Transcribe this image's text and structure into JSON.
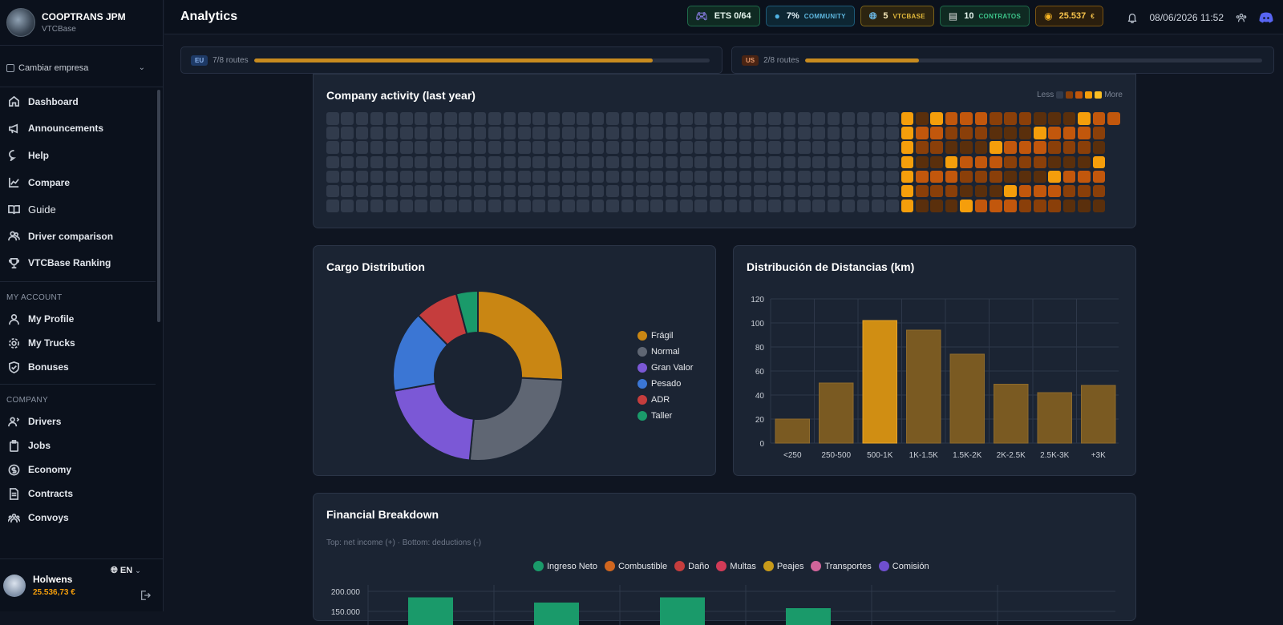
{
  "brand": {
    "name": "COOPTRANS JPM",
    "sub": "VTCBase"
  },
  "switch_company": "Cambiar empresa",
  "nav": {
    "main": [
      {
        "label": "Dashboard",
        "icon": "home-icon"
      },
      {
        "label": "Announcements",
        "icon": "megaphone-icon"
      },
      {
        "label": "Help",
        "icon": "chat-icon"
      },
      {
        "label": "Compare",
        "icon": "chart-line-icon"
      },
      {
        "label": "Guide",
        "icon": "book-icon"
      },
      {
        "label": "Driver comparison",
        "icon": "users-icon"
      },
      {
        "label": "VTCBase Ranking",
        "icon": "trophy-icon"
      }
    ],
    "account_title": "MY ACCOUNT",
    "account": [
      {
        "label": "My Profile",
        "icon": "user-icon"
      },
      {
        "label": "My Trucks",
        "icon": "gear-icon"
      },
      {
        "label": "Bonuses",
        "icon": "shield-icon"
      }
    ],
    "company_title": "COMPANY",
    "company": [
      {
        "label": "Drivers",
        "icon": "users-icon"
      },
      {
        "label": "Jobs",
        "icon": "clipboard-icon"
      },
      {
        "label": "Economy",
        "icon": "dollar-icon"
      },
      {
        "label": "Contracts",
        "icon": "document-icon"
      },
      {
        "label": "Convoys",
        "icon": "group-icon"
      }
    ]
  },
  "user": {
    "name": "Holwens",
    "money": "25.536,73 €",
    "lang": "EN"
  },
  "header": {
    "title": "Analytics",
    "pills": {
      "ets": "ETS 0/64",
      "community_value": "7%",
      "community_label": "COMMUNITY",
      "vtc_value": "5",
      "vtc_label": "VTCBASE",
      "contracts_value": "10",
      "contracts_label": "CONTRATOS",
      "money_value": "25.537",
      "money_unit": "€"
    },
    "datetime": "08/06/2026 11:52"
  },
  "routes": {
    "eu": {
      "tag": "EU",
      "text": "7/8 routes",
      "progress": 0.875
    },
    "us": {
      "tag": "US",
      "text": "2/8 routes",
      "progress": 0.25
    }
  },
  "activity": {
    "title": "Company activity (last year)",
    "less": "Less",
    "more": "More",
    "colors": [
      "#313b4c",
      "#5a2f0c",
      "#8a3f09",
      "#c2570c",
      "#f59e0b"
    ]
  },
  "cargo": {
    "title": "Cargo Distribution",
    "chart_data": {
      "type": "pie",
      "labels": [
        "Frágil",
        "Normal",
        "Gran Valor",
        "Pesado",
        "ADR",
        "Taller"
      ],
      "values": [
        25,
        25,
        20,
        15,
        8,
        4
      ],
      "colors": [
        "#c98613",
        "#5f6673",
        "#7b58d6",
        "#3b76d4",
        "#c53d3d",
        "#1a9a6a"
      ]
    }
  },
  "distances": {
    "title": "Distribución de Distancias (km)",
    "chart_data": {
      "type": "bar",
      "categories": [
        "<250",
        "250-500",
        "500-1K",
        "1K-1.5K",
        "1.5K-2K",
        "2K-2.5K",
        "2.5K-3K",
        "+3K"
      ],
      "values": [
        20,
        50,
        102,
        94,
        74,
        49,
        42,
        48
      ],
      "highlight_index": 2,
      "ylim": [
        0,
        120
      ],
      "yticks": [
        0,
        20,
        40,
        60,
        80,
        100,
        120
      ]
    }
  },
  "financial": {
    "title": "Financial Breakdown",
    "subtitle": "Top: net income (+) · Bottom: deductions (-)",
    "chart_data": {
      "type": "bar",
      "legend": [
        {
          "name": "Ingreso Neto",
          "color": "#1a9a6a"
        },
        {
          "name": "Combustible",
          "color": "#d0661f"
        },
        {
          "name": "Daño",
          "color": "#c53d3d"
        },
        {
          "name": "Multas",
          "color": "#d23b57"
        },
        {
          "name": "Peajes",
          "color": "#c79a1a"
        },
        {
          "name": "Transportes",
          "color": "#d0649a"
        },
        {
          "name": "Comisión",
          "color": "#6f4fcf"
        }
      ],
      "yticks": [
        "200.000",
        "150.000"
      ],
      "visible_values": [
        {
          "series": "Ingreso Neto",
          "values": [
            185000,
            172000,
            185000,
            158000
          ]
        }
      ]
    }
  }
}
